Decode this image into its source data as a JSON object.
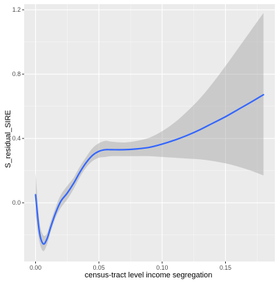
{
  "chart_data": {
    "type": "line",
    "title": "",
    "xlabel": "census-tract level income segregation",
    "ylabel": "S_residual_SIRE",
    "xlim": [
      -0.009,
      0.189
    ],
    "ylim": [
      -0.365,
      1.235
    ],
    "x_ticks": [
      {
        "value": 0.0,
        "label": "0.00"
      },
      {
        "value": 0.05,
        "label": "0.05"
      },
      {
        "value": 0.1,
        "label": "0.10"
      },
      {
        "value": 0.15,
        "label": "0.15"
      }
    ],
    "y_ticks": [
      {
        "value": 0.0,
        "label": "0.0"
      },
      {
        "value": 0.4,
        "label": "0.4"
      },
      {
        "value": 0.8,
        "label": "0.8"
      },
      {
        "value": 1.2,
        "label": "1.2"
      }
    ],
    "grid": true,
    "legend": "none",
    "colors": {
      "panel_background": "#ebebeb",
      "grid_major": "#ffffff",
      "line": "#3366ff",
      "ribbon": "#999999"
    },
    "series": [
      {
        "x": [
          0.0,
          0.003,
          0.006,
          0.009,
          0.012,
          0.016,
          0.02,
          0.025,
          0.03,
          0.035,
          0.04,
          0.045,
          0.05,
          0.055,
          0.06,
          0.07,
          0.08,
          0.09,
          0.1,
          0.11,
          0.12,
          0.13,
          0.14,
          0.15,
          0.16,
          0.17,
          0.18
        ],
        "y": [
          0.05,
          -0.18,
          -0.255,
          -0.225,
          -0.15,
          -0.06,
          0.01,
          0.06,
          0.12,
          0.19,
          0.25,
          0.295,
          0.32,
          0.33,
          0.33,
          0.33,
          0.335,
          0.345,
          0.365,
          0.39,
          0.42,
          0.455,
          0.495,
          0.535,
          0.58,
          0.625,
          0.672
        ],
        "lower": [
          -0.08,
          -0.24,
          -0.3,
          -0.26,
          -0.18,
          -0.09,
          -0.03,
          0.02,
          0.085,
          0.16,
          0.22,
          0.26,
          0.28,
          0.285,
          0.29,
          0.29,
          0.29,
          0.29,
          0.285,
          0.28,
          0.275,
          0.27,
          0.26,
          0.245,
          0.225,
          0.2,
          0.17
        ],
        "upper": [
          0.19,
          -0.11,
          -0.2,
          -0.19,
          -0.115,
          -0.025,
          0.05,
          0.105,
          0.155,
          0.225,
          0.285,
          0.34,
          0.37,
          0.385,
          0.38,
          0.375,
          0.385,
          0.405,
          0.445,
          0.5,
          0.57,
          0.65,
          0.745,
          0.85,
          0.96,
          1.07,
          1.18
        ]
      }
    ]
  }
}
